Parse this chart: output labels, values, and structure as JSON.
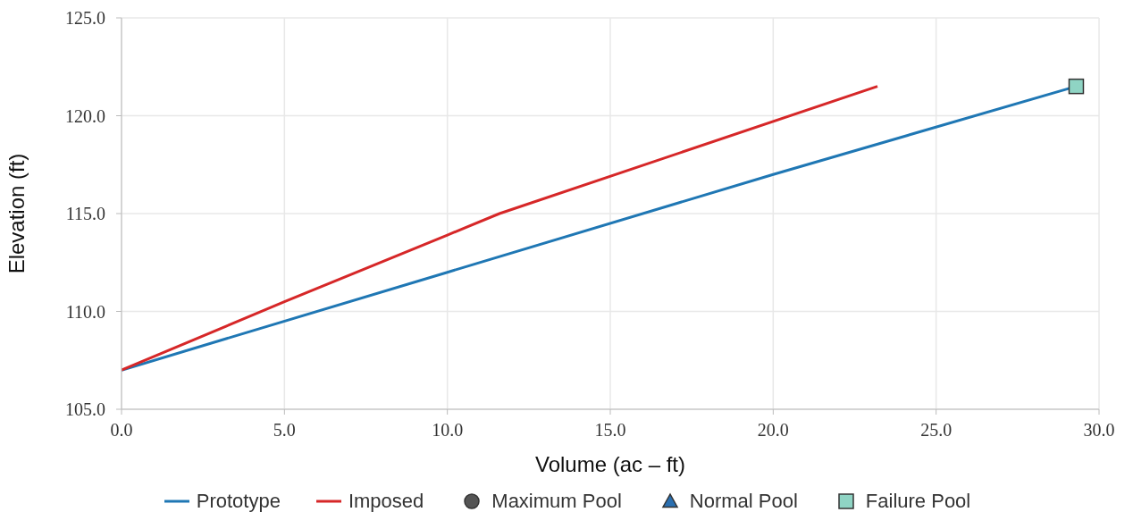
{
  "chart_data": {
    "type": "line",
    "xlabel": "Volume (ac – ft)",
    "ylabel": "Elevation (ft)",
    "xlim": [
      0,
      30
    ],
    "xticks": [
      {
        "value": 0,
        "label": "0.0"
      },
      {
        "value": 5,
        "label": "5.0"
      },
      {
        "value": 10,
        "label": "10.0"
      },
      {
        "value": 15,
        "label": "15.0"
      },
      {
        "value": 20,
        "label": "20.0"
      },
      {
        "value": 25,
        "label": "25.0"
      },
      {
        "value": 30,
        "label": "30.0"
      }
    ],
    "ylim": [
      105,
      125
    ],
    "yticks": [
      {
        "value": 105,
        "label": "105.0"
      },
      {
        "value": 110,
        "label": "110.0"
      },
      {
        "value": 115,
        "label": "115.0"
      },
      {
        "value": 120,
        "label": "120.0"
      },
      {
        "value": 125,
        "label": "125.0"
      }
    ],
    "grid": true,
    "legend": "bottom",
    "marker": "none",
    "line_style": "solid",
    "series": [
      {
        "name": "Prototype",
        "color": "#1f77b4",
        "x": [
          0,
          10,
          20,
          29.3
        ],
        "values": [
          107,
          112,
          117,
          121.5
        ]
      },
      {
        "name": "Imposed",
        "color": "#d62728",
        "x": [
          0,
          5,
          10,
          11.6,
          23.2
        ],
        "values": [
          107,
          110.5,
          113.9,
          115,
          121.5
        ]
      },
      {
        "name": "Maximum Pool",
        "type": "scatter",
        "color": "#555555",
        "marker": "circle"
      },
      {
        "name": "Normal Pool",
        "type": "scatter",
        "color": "#2a6fb0",
        "marker": "triangle"
      },
      {
        "name": "Failure Pool",
        "type": "scatter",
        "color": "#8fd4c4",
        "marker": "square",
        "x": [
          29.3
        ],
        "values": [
          121.5
        ]
      }
    ]
  }
}
